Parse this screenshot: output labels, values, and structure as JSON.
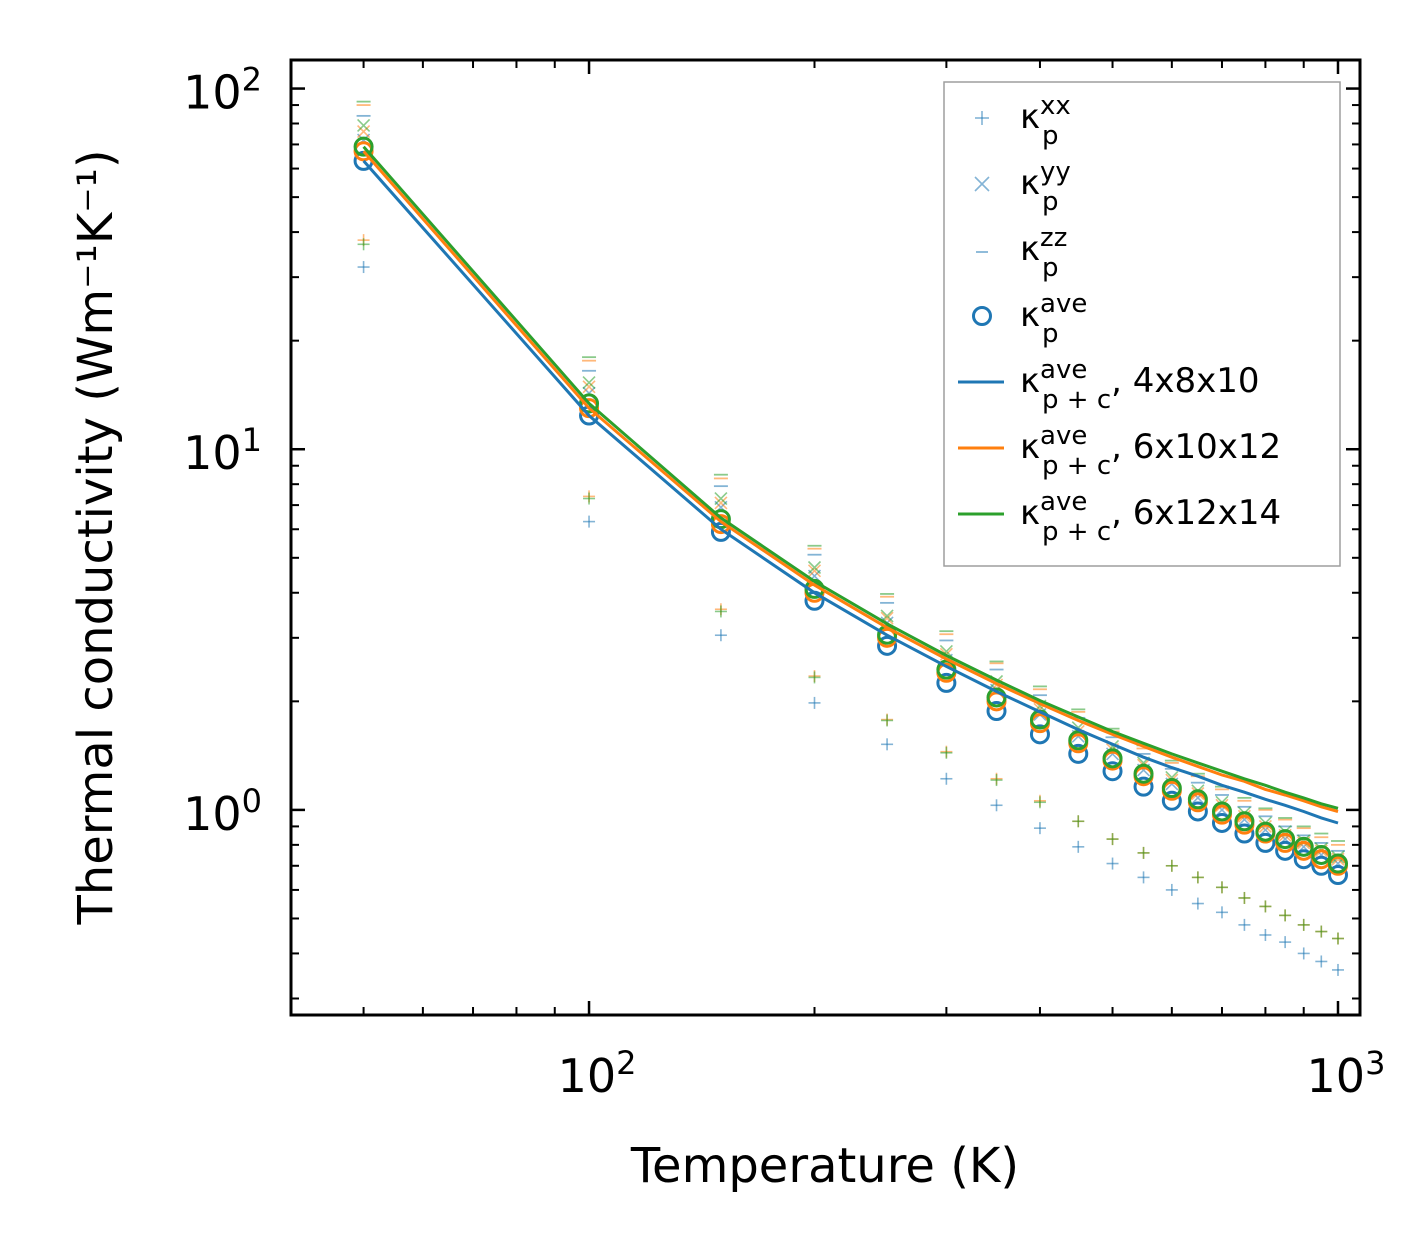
{
  "chart_data": {
    "type": "scatter",
    "xscale": "log",
    "yscale": "log",
    "xlabel": "Temperature (K)",
    "ylabel": "Thermal conductivity (Wm⁻¹K⁻¹)",
    "xlim": [
      40,
      1070
    ],
    "ylim": [
      0.27,
      120
    ],
    "xticks": [
      {
        "base": "10",
        "exp": "2",
        "value": 100
      },
      {
        "base": "10",
        "exp": "3",
        "value": 1000
      }
    ],
    "yticks": [
      {
        "base": "10",
        "exp": "0",
        "value": 1
      },
      {
        "base": "10",
        "exp": "1",
        "value": 10
      },
      {
        "base": "10",
        "exp": "2",
        "value": 100
      }
    ],
    "legend_position": "top-right",
    "x": [
      50,
      100,
      150,
      200,
      250,
      300,
      350,
      400,
      450,
      500,
      550,
      600,
      650,
      700,
      750,
      800,
      850,
      900,
      950,
      1000
    ],
    "colors": {
      "c1": "#1f77b4",
      "c2": "#ff7f0e",
      "c3": "#2ca02c"
    },
    "legend": [
      {
        "sym": "κ",
        "sup": "xx",
        "sub": "p",
        "tail": "",
        "marker": "plus"
      },
      {
        "sym": "κ",
        "sup": "yy",
        "sub": "p",
        "tail": "",
        "marker": "x"
      },
      {
        "sym": "κ",
        "sup": "zz",
        "sub": "p",
        "tail": "",
        "marker": "dash"
      },
      {
        "sym": "κ",
        "sup": "ave",
        "sub": "p",
        "tail": "",
        "marker": "circle"
      },
      {
        "sym": "κ",
        "sup": "ave",
        "sub": "p + c",
        "tail": ", 4x8x10",
        "marker": "line1"
      },
      {
        "sym": "κ",
        "sup": "ave",
        "sub": "p + c",
        "tail": ", 6x10x12",
        "marker": "line2"
      },
      {
        "sym": "κ",
        "sup": "ave",
        "sub": "p + c",
        "tail": ", 6x12x14",
        "marker": "line3"
      }
    ],
    "series": [
      {
        "name": "4x8x10",
        "color_key": "c1",
        "kxx": [
          32,
          6.3,
          3.05,
          1.98,
          1.52,
          1.22,
          1.03,
          0.89,
          0.79,
          0.71,
          0.65,
          0.6,
          0.55,
          0.52,
          0.48,
          0.45,
          0.43,
          0.4,
          0.38,
          0.36
        ],
        "kyy": [
          72,
          14.3,
          6.9,
          4.45,
          3.3,
          2.6,
          2.15,
          1.84,
          1.6,
          1.43,
          1.29,
          1.18,
          1.08,
          1.0,
          0.94,
          0.88,
          0.83,
          0.79,
          0.75,
          0.71
        ],
        "kzz": [
          84,
          16.5,
          7.9,
          5.1,
          3.75,
          2.95,
          2.45,
          2.08,
          1.8,
          1.59,
          1.43,
          1.3,
          1.19,
          1.1,
          1.02,
          0.96,
          0.9,
          0.85,
          0.81,
          0.77
        ],
        "kave": [
          63,
          12.4,
          5.9,
          3.8,
          2.85,
          2.25,
          1.88,
          1.62,
          1.43,
          1.28,
          1.16,
          1.06,
          0.99,
          0.92,
          0.86,
          0.81,
          0.77,
          0.73,
          0.7,
          0.66
        ],
        "kpc": [
          63,
          12.4,
          6.0,
          4.0,
          3.05,
          2.5,
          2.13,
          1.87,
          1.67,
          1.52,
          1.4,
          1.31,
          1.24,
          1.17,
          1.12,
          1.07,
          1.03,
          0.99,
          0.95,
          0.92
        ]
      },
      {
        "name": "6x10x12",
        "color_key": "c2",
        "kxx": [
          38,
          7.4,
          3.6,
          2.35,
          1.78,
          1.45,
          1.22,
          1.06,
          0.93,
          0.83,
          0.76,
          0.7,
          0.65,
          0.61,
          0.57,
          0.54,
          0.51,
          0.48,
          0.46,
          0.44
        ],
        "kyy": [
          76,
          14.9,
          7.1,
          4.6,
          3.4,
          2.7,
          2.22,
          1.9,
          1.65,
          1.47,
          1.33,
          1.21,
          1.11,
          1.03,
          0.96,
          0.9,
          0.85,
          0.81,
          0.77,
          0.73
        ],
        "kzz": [
          90,
          17.6,
          8.3,
          5.3,
          3.9,
          3.07,
          2.55,
          2.16,
          1.87,
          1.65,
          1.48,
          1.35,
          1.24,
          1.14,
          1.06,
          1.0,
          0.94,
          0.89,
          0.84,
          0.8
        ],
        "kave": [
          67,
          13.0,
          6.2,
          4.0,
          3.0,
          2.4,
          2.0,
          1.74,
          1.53,
          1.37,
          1.24,
          1.13,
          1.05,
          0.97,
          0.91,
          0.86,
          0.81,
          0.77,
          0.73,
          0.7
        ],
        "kpc": [
          67,
          13.0,
          6.3,
          4.2,
          3.2,
          2.62,
          2.24,
          1.97,
          1.77,
          1.62,
          1.5,
          1.4,
          1.32,
          1.25,
          1.2,
          1.14,
          1.1,
          1.06,
          1.02,
          0.99
        ]
      },
      {
        "name": "6x12x14",
        "color_key": "c3",
        "kxx": [
          37,
          7.3,
          3.55,
          2.33,
          1.77,
          1.44,
          1.21,
          1.05,
          0.93,
          0.83,
          0.76,
          0.7,
          0.65,
          0.61,
          0.57,
          0.54,
          0.51,
          0.48,
          0.46,
          0.44
        ],
        "kyy": [
          79,
          15.3,
          7.3,
          4.7,
          3.45,
          2.75,
          2.27,
          1.94,
          1.69,
          1.5,
          1.35,
          1.23,
          1.13,
          1.05,
          0.98,
          0.92,
          0.87,
          0.82,
          0.78,
          0.74
        ],
        "kzz": [
          92,
          18.0,
          8.5,
          5.4,
          3.97,
          3.13,
          2.58,
          2.2,
          1.9,
          1.68,
          1.51,
          1.37,
          1.26,
          1.16,
          1.08,
          1.01,
          0.95,
          0.9,
          0.86,
          0.82
        ],
        "kave": [
          69,
          13.4,
          6.4,
          4.1,
          3.06,
          2.45,
          2.05,
          1.78,
          1.56,
          1.39,
          1.26,
          1.15,
          1.07,
          0.99,
          0.93,
          0.87,
          0.83,
          0.79,
          0.75,
          0.71
        ],
        "kpc": [
          69,
          13.4,
          6.45,
          4.3,
          3.28,
          2.68,
          2.29,
          2.01,
          1.81,
          1.65,
          1.53,
          1.43,
          1.35,
          1.28,
          1.22,
          1.17,
          1.12,
          1.08,
          1.04,
          1.01
        ]
      }
    ]
  }
}
